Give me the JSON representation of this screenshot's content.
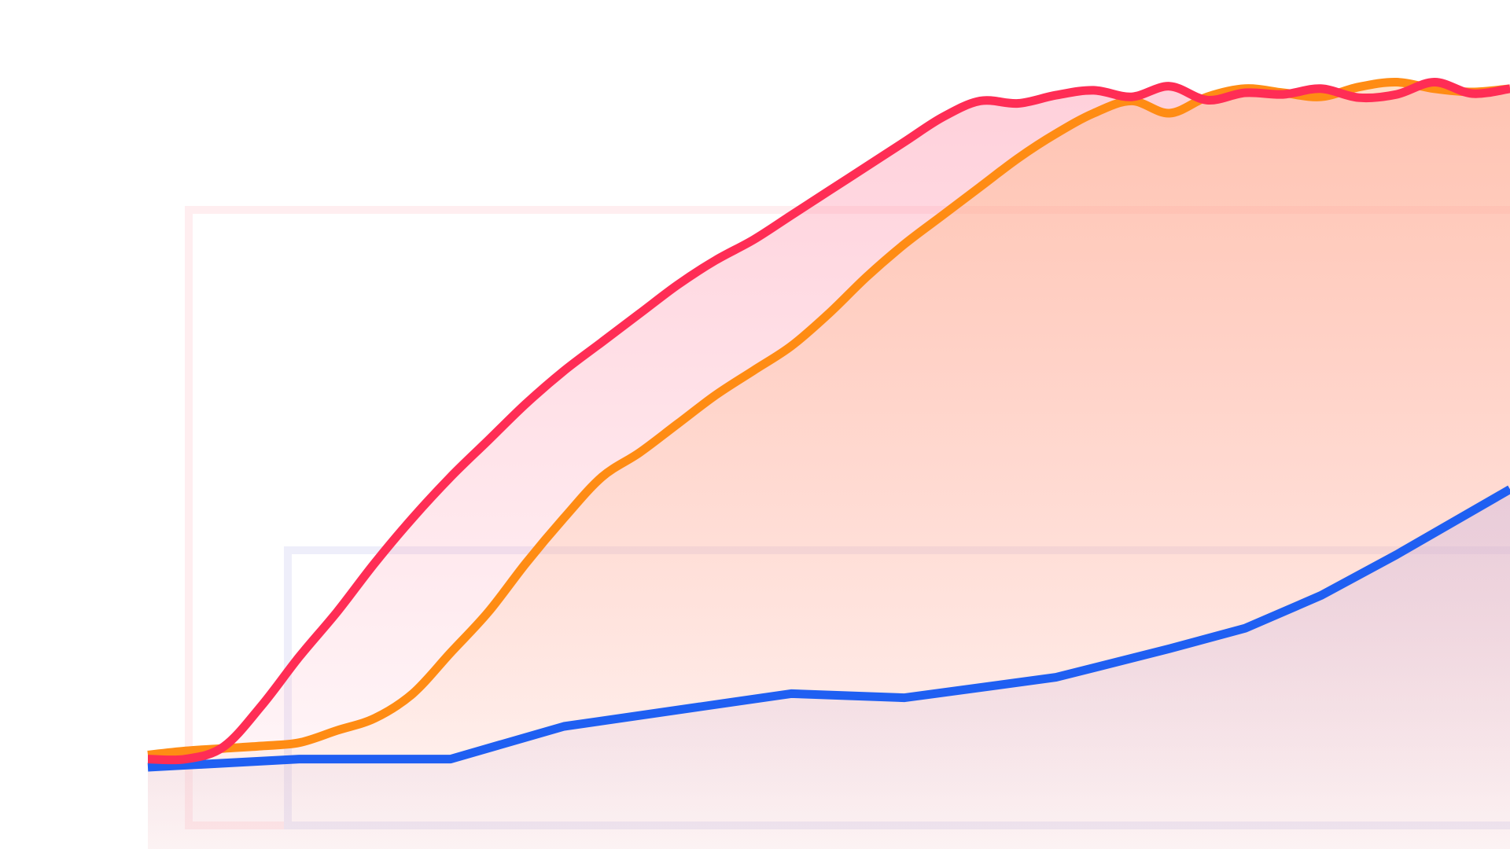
{
  "colors": {
    "background": "#ffffff",
    "red": "#ff2d55",
    "orange": "#ff8c14",
    "blue": "#1f5ff2",
    "frame_red": "#ffeef0",
    "frame_blue": "#eeeefa"
  },
  "chart_data": {
    "type": "area",
    "title": "",
    "xlabel": "",
    "ylabel": "",
    "grid": false,
    "legend": "none",
    "xlim": [
      0,
      36
    ],
    "ylim": [
      0,
      100
    ],
    "series": [
      {
        "color": "#ff2d55",
        "smooth": true,
        "fill_color": "#ff8fa8",
        "x": [
          0,
          1,
          2,
          3,
          4,
          5,
          6,
          7,
          8,
          9,
          10,
          11,
          12,
          13,
          14,
          15,
          16,
          17,
          18,
          19,
          20,
          21,
          22,
          23,
          24,
          25,
          26,
          27,
          28,
          29,
          30,
          31,
          32,
          33,
          34,
          35,
          36
        ],
        "y": [
          11,
          11,
          12.5,
          17.5,
          23.5,
          29,
          35,
          40.5,
          45.5,
          50,
          54.5,
          58.5,
          62,
          65.5,
          69,
          72,
          74.5,
          77.5,
          80.5,
          83.5,
          86.5,
          89.5,
          91.5,
          91.2,
          92.2,
          92.8,
          92,
          93.3,
          91.6,
          92.5,
          92.3,
          93,
          91.9,
          92.3,
          93.8,
          92.4,
          93
        ]
      },
      {
        "color": "#ff8c14",
        "smooth": true,
        "fill_color": "#ffb27a",
        "x": [
          0,
          1,
          2,
          3,
          4,
          5,
          6,
          7,
          8,
          9,
          10,
          11,
          12,
          13,
          14,
          15,
          16,
          17,
          18,
          19,
          20,
          21,
          22,
          23,
          24,
          25,
          26,
          27,
          28,
          29,
          30,
          31,
          32,
          33,
          34,
          35,
          36
        ],
        "y": [
          11.5,
          12,
          12.3,
          12.6,
          13,
          14.5,
          16,
          19,
          24,
          29,
          35,
          40.5,
          45.5,
          48.5,
          52,
          55.5,
          58.5,
          61.5,
          65.5,
          70,
          74,
          77.5,
          81,
          84.5,
          87.5,
          90,
          91.5,
          90,
          92,
          93,
          92.5,
          92,
          93.2,
          93.8,
          93,
          92.6,
          93
        ]
      },
      {
        "color": "#1f5ff2",
        "smooth": false,
        "fill_color": "#c9b6e2",
        "x": [
          0,
          4,
          8,
          11,
          17,
          20,
          24,
          27,
          29,
          31,
          33,
          36
        ],
        "y": [
          10,
          11,
          11,
          15,
          19,
          18.5,
          21,
          24.5,
          27,
          31,
          36,
          44
        ]
      }
    ]
  }
}
